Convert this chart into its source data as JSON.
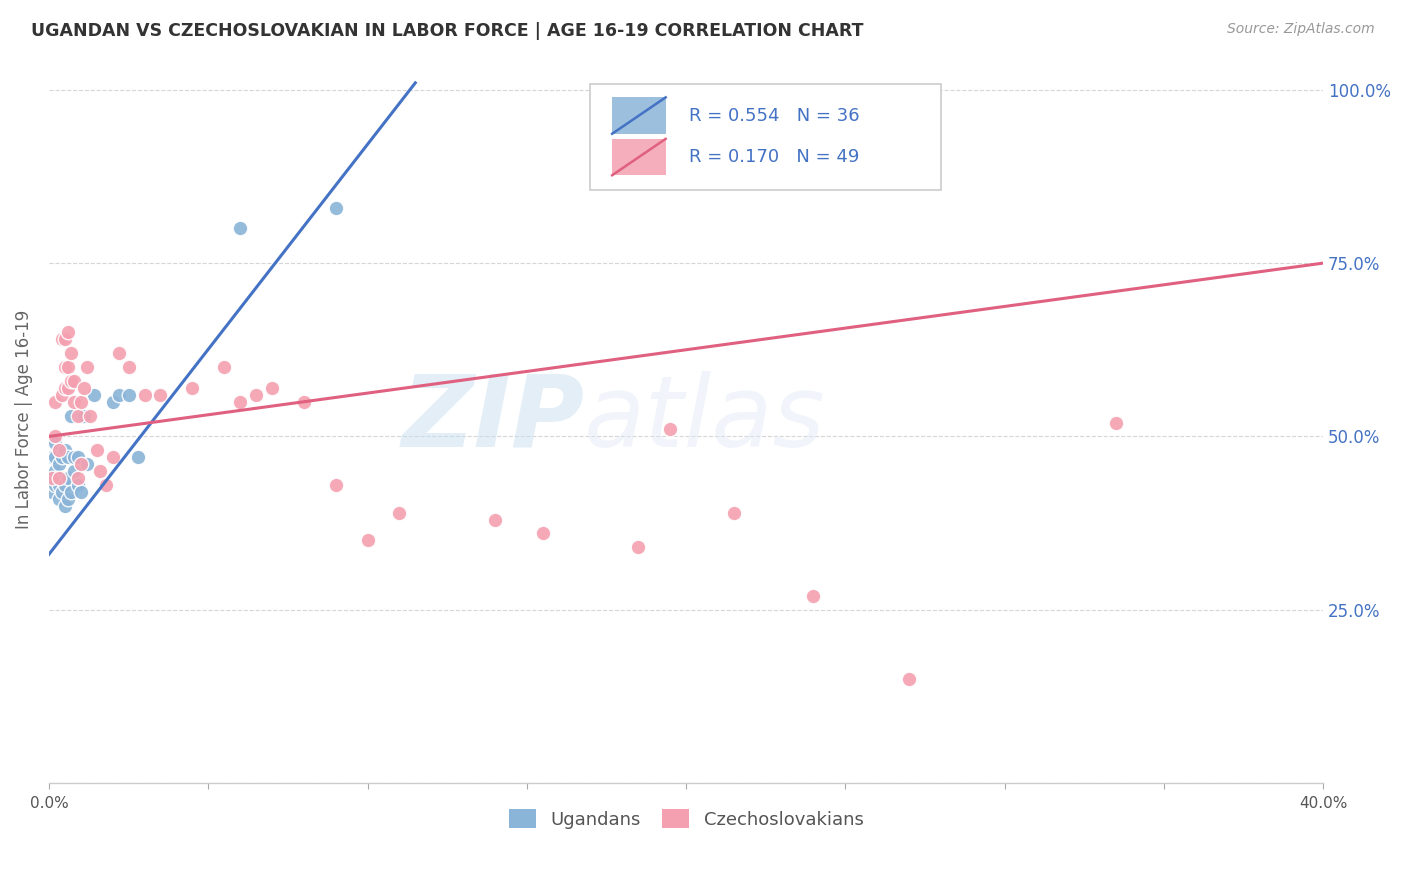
{
  "title": "UGANDAN VS CZECHOSLOVAKIAN IN LABOR FORCE | AGE 16-19 CORRELATION CHART",
  "source": "Source: ZipAtlas.com",
  "ylabel": "In Labor Force | Age 16-19",
  "xlim": [
    0.0,
    0.4
  ],
  "ylim": [
    0.0,
    1.05
  ],
  "ytick_positions": [
    0.0,
    0.25,
    0.5,
    0.75,
    1.0
  ],
  "ytick_labels_right": [
    "",
    "25.0%",
    "50.0%",
    "75.0%",
    "100.0%"
  ],
  "xtick_positions": [
    0.0,
    0.05,
    0.1,
    0.15,
    0.2,
    0.25,
    0.3,
    0.35,
    0.4
  ],
  "xtick_labels": [
    "0.0%",
    "",
    "",
    "",
    "",
    "",
    "",
    "",
    "40.0%"
  ],
  "legend_ugandan_label": "Ugandans",
  "legend_czech_label": "Czechoslovakians",
  "ugandan_color": "#8ab4d8",
  "czech_color": "#f4a0b0",
  "blue_line_color": "#4472c4",
  "pink_line_color": "#e06080",
  "R_ugandan": 0.554,
  "N_ugandan": 36,
  "R_czech": 0.17,
  "N_czech": 49,
  "watermark_zip": "ZIP",
  "watermark_atlas": "atlas",
  "background_color": "#ffffff",
  "grid_color": "#cccccc",
  "ugandan_x": [
    0.001,
    0.001,
    0.001,
    0.002,
    0.002,
    0.002,
    0.002,
    0.003,
    0.003,
    0.003,
    0.004,
    0.004,
    0.004,
    0.005,
    0.005,
    0.005,
    0.006,
    0.006,
    0.006,
    0.007,
    0.007,
    0.008,
    0.008,
    0.009,
    0.009,
    0.01,
    0.01,
    0.011,
    0.012,
    0.014,
    0.02,
    0.022,
    0.025,
    0.028,
    0.06,
    0.09
  ],
  "ugandan_y": [
    0.42,
    0.44,
    0.47,
    0.43,
    0.45,
    0.47,
    0.49,
    0.41,
    0.43,
    0.46,
    0.42,
    0.44,
    0.47,
    0.4,
    0.43,
    0.48,
    0.41,
    0.44,
    0.47,
    0.42,
    0.53,
    0.45,
    0.47,
    0.43,
    0.47,
    0.42,
    0.53,
    0.53,
    0.46,
    0.56,
    0.55,
    0.56,
    0.56,
    0.47,
    0.8,
    0.83
  ],
  "czech_x": [
    0.001,
    0.002,
    0.002,
    0.003,
    0.003,
    0.004,
    0.004,
    0.005,
    0.005,
    0.005,
    0.006,
    0.006,
    0.006,
    0.007,
    0.007,
    0.008,
    0.008,
    0.009,
    0.009,
    0.01,
    0.01,
    0.011,
    0.012,
    0.013,
    0.015,
    0.016,
    0.018,
    0.02,
    0.022,
    0.025,
    0.03,
    0.035,
    0.045,
    0.055,
    0.06,
    0.065,
    0.07,
    0.08,
    0.09,
    0.1,
    0.11,
    0.14,
    0.155,
    0.185,
    0.195,
    0.215,
    0.24,
    0.27,
    0.335
  ],
  "czech_y": [
    0.44,
    0.5,
    0.55,
    0.44,
    0.48,
    0.56,
    0.64,
    0.57,
    0.6,
    0.64,
    0.57,
    0.6,
    0.65,
    0.58,
    0.62,
    0.55,
    0.58,
    0.44,
    0.53,
    0.55,
    0.46,
    0.57,
    0.6,
    0.53,
    0.48,
    0.45,
    0.43,
    0.47,
    0.62,
    0.6,
    0.56,
    0.56,
    0.57,
    0.6,
    0.55,
    0.56,
    0.57,
    0.55,
    0.43,
    0.35,
    0.39,
    0.38,
    0.36,
    0.34,
    0.51,
    0.39,
    0.27,
    0.15,
    0.52
  ],
  "blue_line_x0": 0.0,
  "blue_line_y0": 0.33,
  "blue_line_x1": 0.115,
  "blue_line_y1": 1.01,
  "pink_line_x0": 0.0,
  "pink_line_y0": 0.5,
  "pink_line_x1": 0.4,
  "pink_line_y1": 0.75
}
